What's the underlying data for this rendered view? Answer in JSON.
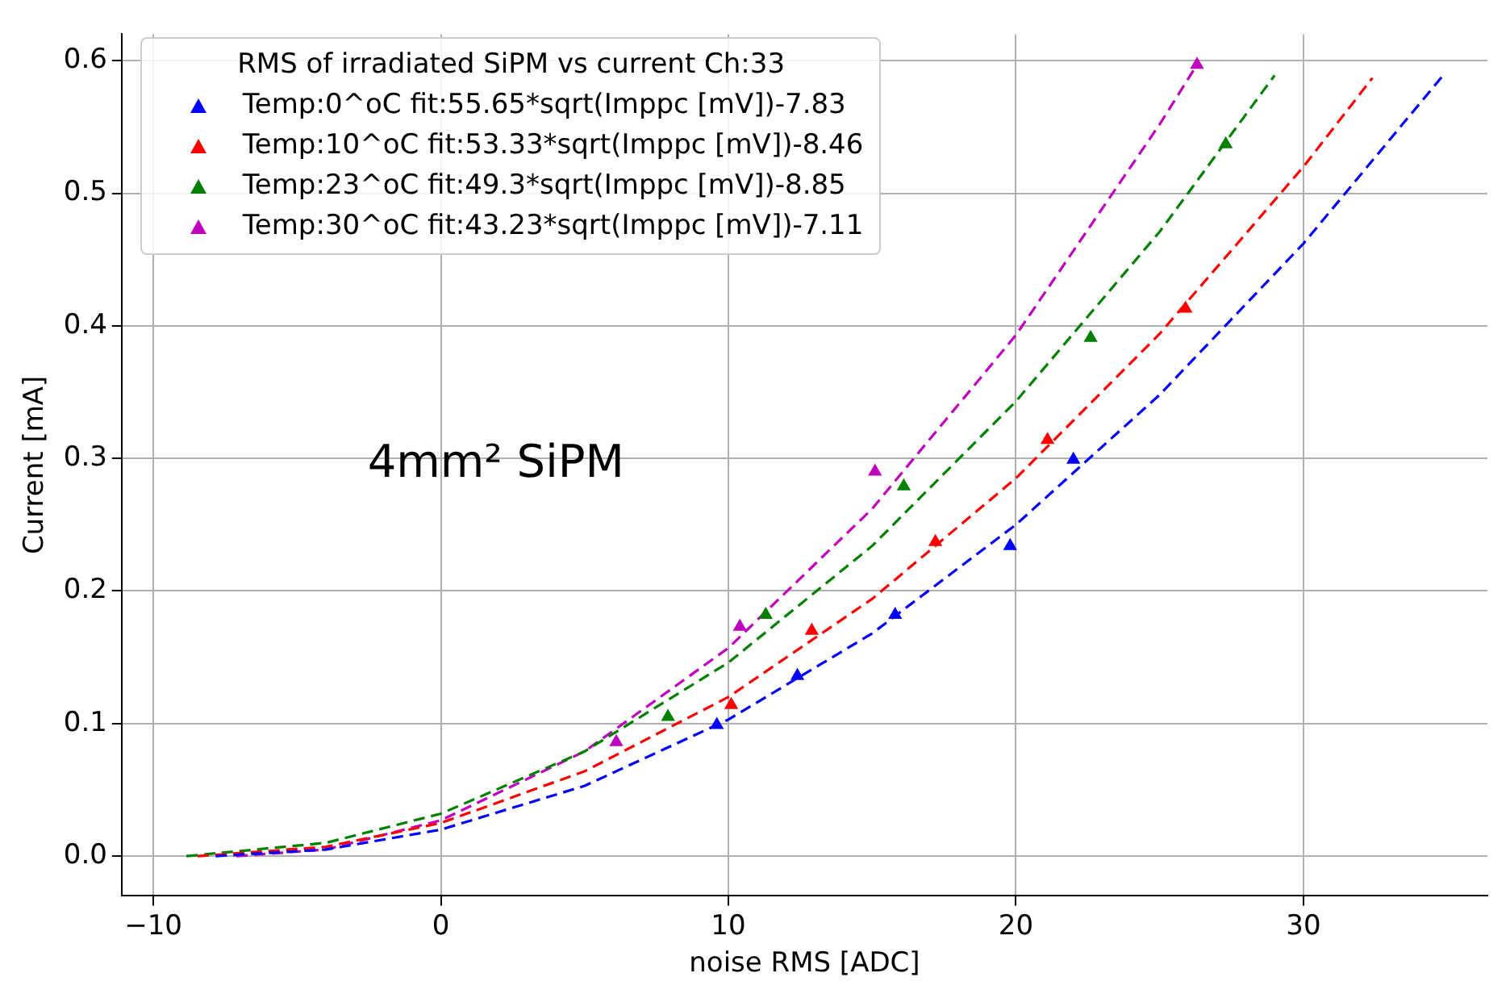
{
  "chart_data": {
    "type": "scatter",
    "xlabel": "noise RMS [ADC]",
    "ylabel": "Current [mA]",
    "legend_title": "RMS of irradiated SiPM vs current Ch:33",
    "legend": "top left",
    "grid": true,
    "xlim": [
      -11.1,
      36.4
    ],
    "ylim": [
      -0.03,
      0.62
    ],
    "xticks": [
      {
        "value": -10,
        "label": "−10"
      },
      0,
      10,
      20,
      30
    ],
    "yticks": [
      {
        "value": 0,
        "label": "0.0"
      },
      {
        "value": 0.1,
        "label": "0.1"
      },
      {
        "value": 0.2,
        "label": "0.2"
      },
      {
        "value": 0.3,
        "label": "0.3"
      },
      {
        "value": 0.4,
        "label": "0.4"
      },
      {
        "value": 0.5,
        "label": "0.5"
      },
      {
        "value": 0.6,
        "label": "0.6"
      }
    ],
    "annotations": [
      "4mm² SiPM"
    ],
    "series": [
      {
        "name": "Temp:0^oC fit:55.65*sqrt(Imppc [mV])-7.83",
        "marker": "triangle",
        "color": "#0000ff",
        "x": [
          9.6,
          12.4,
          15.8,
          19.8,
          22.0
        ],
        "values": [
          0.099,
          0.136,
          0.182,
          0.234,
          0.299
        ]
      },
      {
        "name": "Temp:10^oC fit:53.33*sqrt(Imppc [mV])-8.46",
        "marker": "triangle",
        "color": "#ff0000",
        "x": [
          10.1,
          12.9,
          17.2,
          21.1,
          25.9
        ],
        "values": [
          0.114,
          0.17,
          0.237,
          0.314,
          0.413
        ]
      },
      {
        "name": "Temp:23^oC fit:49.3*sqrt(Imppc [mV])-8.85",
        "marker": "triangle",
        "color": "#008000",
        "x": [
          7.9,
          11.3,
          16.1,
          22.6,
          27.3
        ],
        "values": [
          0.105,
          0.182,
          0.279,
          0.391,
          0.537
        ]
      },
      {
        "name": "Temp:30^oC fit:43.23*sqrt(Imppc [mV])-7.11",
        "marker": "triangle",
        "color": "#bf00bf",
        "x": [
          6.1,
          10.4,
          15.1,
          26.3
        ],
        "values": [
          0.086,
          0.173,
          0.29,
          0.597
        ]
      },
      {
        "type": "line",
        "line_style": "dashed",
        "marker": "none",
        "color": "#0000ff",
        "x": [
          -7.83,
          -4,
          0,
          5,
          10,
          15,
          20,
          25,
          30,
          34.9
        ],
        "values": [
          0,
          0.005,
          0.02,
          0.053,
          0.103,
          0.168,
          0.25,
          0.348,
          0.462,
          0.59
        ]
      },
      {
        "type": "line",
        "line_style": "dashed",
        "marker": "none",
        "color": "#ff0000",
        "x": [
          -8.46,
          -4,
          0,
          5,
          10,
          15,
          20,
          25,
          30,
          32.4
        ],
        "values": [
          0,
          0.007,
          0.025,
          0.064,
          0.12,
          0.194,
          0.285,
          0.394,
          0.52,
          0.587
        ]
      },
      {
        "type": "line",
        "line_style": "dashed",
        "marker": "none",
        "color": "#008000",
        "x": [
          -8.85,
          -4,
          0,
          5,
          10,
          15,
          20,
          25,
          29
        ],
        "values": [
          0,
          0.01,
          0.032,
          0.079,
          0.146,
          0.234,
          0.343,
          0.471,
          0.589
        ]
      },
      {
        "type": "line",
        "line_style": "dashed",
        "marker": "none",
        "color": "#bf00bf",
        "x": [
          -7.11,
          -4,
          0,
          5,
          10,
          15,
          20,
          25,
          26.3
        ],
        "values": [
          0,
          0.005,
          0.027,
          0.079,
          0.157,
          0.262,
          0.393,
          0.552,
          0.597
        ]
      }
    ]
  }
}
